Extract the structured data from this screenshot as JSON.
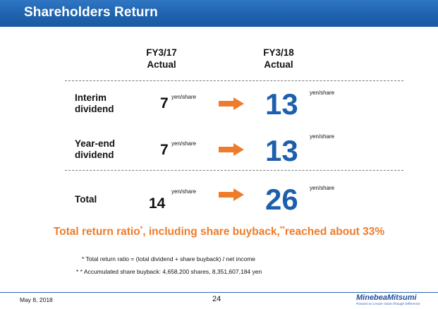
{
  "header": {
    "title": "Shareholders Return"
  },
  "columns": {
    "fy17": {
      "line1": "FY3/17",
      "line2": "Actual"
    },
    "fy18": {
      "line1": "FY3/18",
      "line2": "Actual"
    }
  },
  "rows": [
    {
      "label_line1": "Interim",
      "label_line2": "dividend",
      "fy17_value": "7",
      "fy18_value": "13",
      "unit": "yen/share"
    },
    {
      "label_line1": "Year-end",
      "label_line2": "dividend",
      "fy17_value": "7",
      "fy18_value": "13",
      "unit": "yen/share"
    },
    {
      "label_line1": "Total",
      "label_line2": "",
      "fy17_value": "14",
      "fy18_value": "26",
      "unit": "yen/share"
    }
  ],
  "headline": {
    "part1": "Total return ratio",
    "mark1": "*",
    "part2": ", including share buyback,",
    "mark2": "**",
    "part3": "reached about 33%"
  },
  "notes": [
    "* Total return ratio = (total dividend + share buyback) / net income",
    "* * Accumulated share buyback: 4,658,200 shares, 8,351,607,184 yen"
  ],
  "footer": {
    "date": "May 8, 2018",
    "page": "24",
    "logo_name": "MinebeaMitsumi",
    "logo_tagline": "Passion to Create Value through Difference"
  },
  "colors": {
    "header_blue": "#1f62ad",
    "value_blue": "#1c5fac",
    "accent_orange": "#ee7c2a"
  }
}
